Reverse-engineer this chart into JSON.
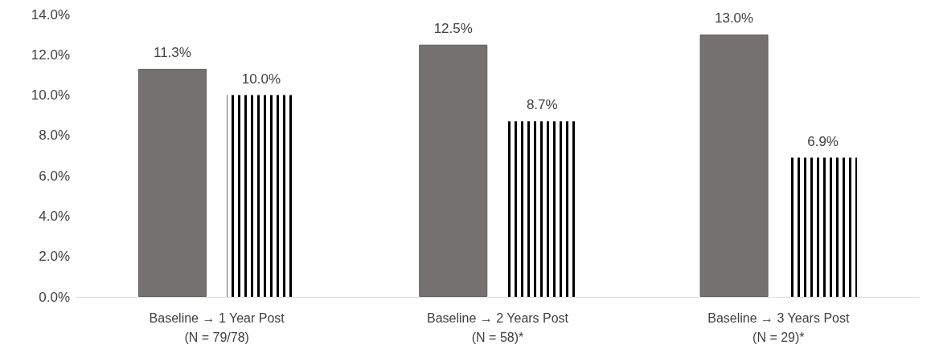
{
  "chart_data": {
    "type": "bar",
    "categories": [
      "Baseline → 1 Year Post\n(N = 79/78)",
      "Baseline → 2 Years Post\n(N = 58)*",
      "Baseline → 3 Years Post\n(N = 29)*"
    ],
    "series": [
      {
        "color": "#767171",
        "values": [
          11.3,
          12.5,
          13.0
        ],
        "value_labels": [
          "11.3%",
          "12.5%",
          "13.0%"
        ]
      },
      {
        "color": "#000000",
        "values": [
          10.0,
          8.7,
          6.9
        ],
        "value_labels": [
          "10.0%",
          "8.7%",
          "6.9%"
        ]
      }
    ],
    "ylim": [
      0,
      14
    ],
    "yticks": [
      {
        "value": 0,
        "label": "0.0%"
      },
      {
        "value": 2,
        "label": "2.0%"
      },
      {
        "value": 4,
        "label": "4.0%"
      },
      {
        "value": 6,
        "label": "6.0%"
      },
      {
        "value": 8,
        "label": "8.0%"
      },
      {
        "value": 10,
        "label": "10.0%"
      },
      {
        "value": 12,
        "label": "12.0%"
      },
      {
        "value": 14,
        "label": "14.0%"
      }
    ],
    "grid": false
  }
}
